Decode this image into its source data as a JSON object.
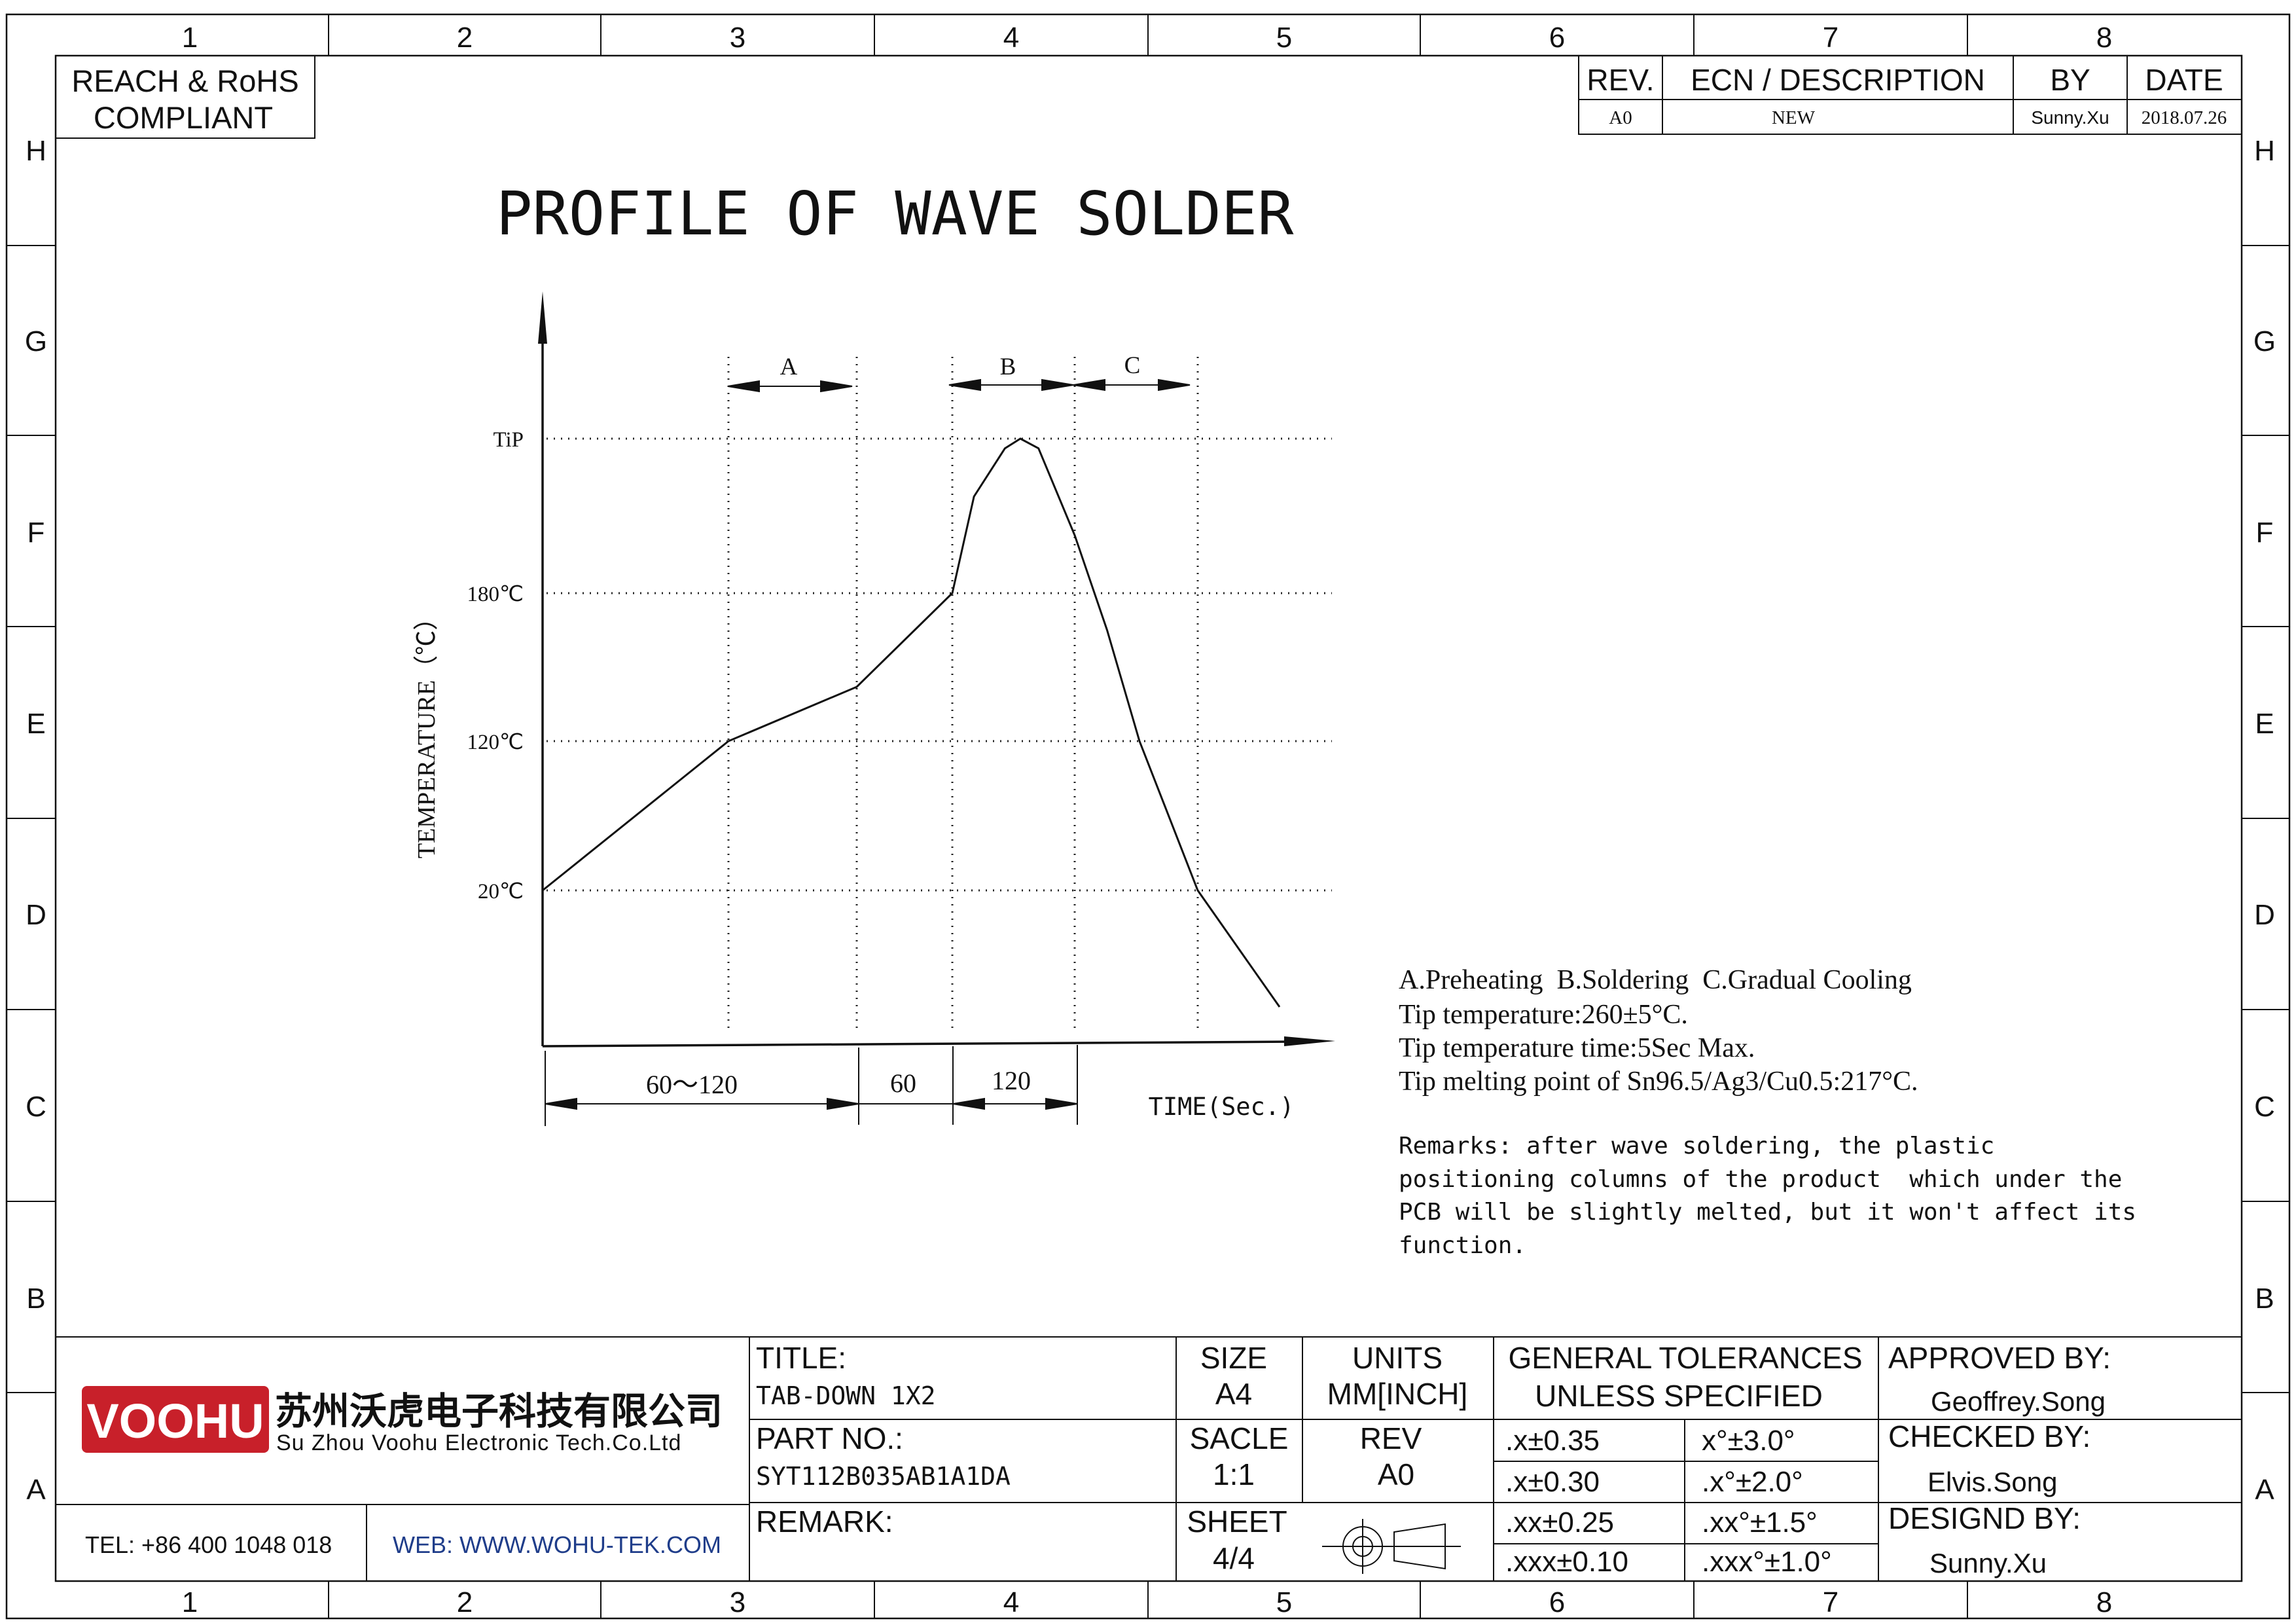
{
  "border": {
    "columns": [
      "1",
      "2",
      "3",
      "4",
      "5",
      "6",
      "7",
      "8"
    ],
    "rows": [
      "H",
      "G",
      "F",
      "E",
      "D",
      "C",
      "B",
      "A"
    ]
  },
  "compliance": {
    "line1": "REACH & RoHS",
    "line2": "COMPLIANT"
  },
  "revision_table": {
    "headers": [
      "REV.",
      "ECN / DESCRIPTION",
      "BY",
      "DATE"
    ],
    "row": [
      "A0",
      "NEW",
      "Sunny.Xu",
      "2018.07.26"
    ]
  },
  "drawing_title": "PROFILE OF WAVE SOLDER",
  "chart_data": {
    "type": "line",
    "title": "PROFILE OF WAVE SOLDER",
    "ylabel": "TEMPERATURE（℃）",
    "xlabel": "TIME(Sec.)",
    "y_tick_labels": [
      "20℃",
      "120℃",
      "180℃",
      "TiP"
    ],
    "y_ticks": [
      20,
      120,
      180,
      260
    ],
    "ylim": [
      -60,
      300
    ],
    "grid": "dotted",
    "phases": [
      {
        "label": "A",
        "name": "Preheating"
      },
      {
        "label": "B",
        "name": "Soldering"
      },
      {
        "label": "C",
        "name": "Gradual Cooling"
      }
    ],
    "time_spans": [
      "60～120",
      "60",
      "120"
    ],
    "profile": [
      {
        "x": 0,
        "y": 20
      },
      {
        "x": 60,
        "y": 120
      },
      {
        "x": 105,
        "y": 142
      },
      {
        "x": 135,
        "y": 180
      },
      {
        "x": 142,
        "y": 230
      },
      {
        "x": 152,
        "y": 255
      },
      {
        "x": 157,
        "y": 260
      },
      {
        "x": 162,
        "y": 255
      },
      {
        "x": 172,
        "y": 210
      },
      {
        "x": 180,
        "y": 165
      },
      {
        "x": 188,
        "y": 120
      },
      {
        "x": 210,
        "y": 20
      },
      {
        "x": 234,
        "y": -60
      }
    ]
  },
  "notes": [
    "A.Preheating  B.Soldering  C.Gradual Cooling",
    "Tip temperature:260±5°C.",
    "Tip temperature time:5Sec Max.",
    "Tip melting point of Sn96.5/Ag3/Cu0.5:217°C."
  ],
  "remarks": [
    "Remarks: after wave soldering, the plastic",
    "positioning columns of the product  which under the",
    "PCB will be slightly melted, but it won't affect its",
    "function."
  ],
  "title_block": {
    "logo_text": "VOOHU",
    "company_cn": "苏州沃虎电子科技有限公司",
    "company_en": "Su Zhou Voohu Electronic Tech.Co.Ltd",
    "tel": "TEL: +86 400 1048 018",
    "web": "WEB: WWW.WOHU-TEK.COM",
    "title_label": "TITLE:",
    "title_value": "TAB-DOWN 1X2",
    "part_label": "PART NO.:",
    "part_value": "SYT112B035AB1A1DA",
    "remark_label": "REMARK:",
    "size_label": "SIZE",
    "size_value": "A4",
    "scale_label": "SACLE",
    "scale_value": "1:1",
    "sheet_label": "SHEET",
    "sheet_value": "4/4",
    "units_label": "UNITS",
    "units_value": "MM[INCH]",
    "rev_label": "REV",
    "rev_value": "A0",
    "tolerance_title_1": "GENERAL TOLERANCES",
    "tolerance_title_2": "UNLESS SPECIFIED",
    "tolerances": [
      [
        ".x±0.35",
        "x°±3.0°"
      ],
      [
        ".x±0.30",
        ".x°±2.0°"
      ],
      [
        ".xx±0.25",
        ".xx°±1.5°"
      ],
      [
        ".xxx±0.10",
        ".xxx°±1.0°"
      ]
    ],
    "approved_label": "APPROVED BY:",
    "approved_value": "Geoffrey.Song",
    "checked_label": "CHECKED BY:",
    "checked_value": "Elvis.Song",
    "designed_label": "DESIGND BY:",
    "designed_value": "Sunny.Xu"
  },
  "colors": {
    "logo_red": "#c8202a",
    "web_blue": "#1f3d8a",
    "ink": "#111111"
  }
}
